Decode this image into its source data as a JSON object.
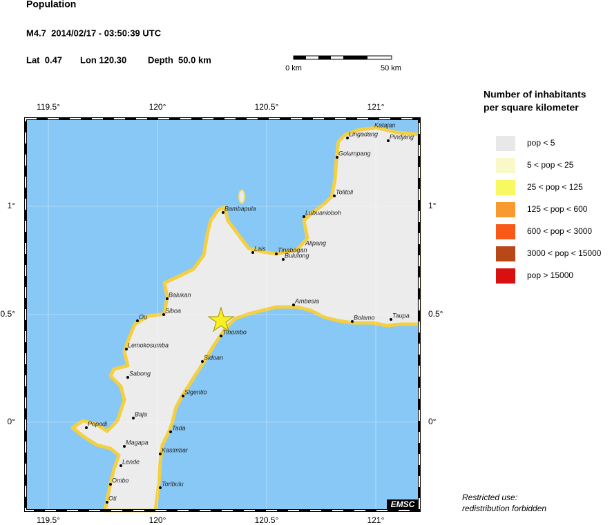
{
  "header": {
    "title": "Population",
    "event": "M4.7  2014/02/17 - 03:50:39 UTC",
    "lat": "Lat  0.47",
    "lon": "Lon 120.30",
    "depth": "Depth  50.0 km"
  },
  "scale_bar": {
    "start": "0 km",
    "end": "50 km"
  },
  "map": {
    "lon_ticks": [
      "119.5°",
      "120°",
      "120.5°",
      "121°"
    ],
    "lat_ticks": [
      "1°",
      "0.5°",
      "0°"
    ],
    "cities": [
      "Katajan",
      "Lingadang",
      "Pindjang",
      "Golumpang",
      "Tolitoli",
      "Lubuanloboh",
      "Bambapula",
      "Lais",
      "Tinabogan",
      "Alipang",
      "Bulutong",
      "Balukan",
      "Siboa",
      "Ou",
      "Ambesia",
      "Bolamo",
      "Taupa",
      "Tinombo",
      "Lemokosumba",
      "Sidoan",
      "Sabong",
      "Sigentio",
      "Baja",
      "Popodi",
      "Tada",
      "Magapa",
      "Kasimbar",
      "Lende",
      "Ombo",
      "Toribulu",
      "Oti"
    ],
    "credit": "EMSC"
  },
  "legend": {
    "title": [
      "Number of inhabitants",
      "per square kilometer"
    ],
    "items": [
      {
        "label": "pop < 5",
        "color": "#e8e8e8"
      },
      {
        "label": "5 < pop < 25",
        "color": "#f8f8c8"
      },
      {
        "label": "25 < pop < 125",
        "color": "#f8f860"
      },
      {
        "label": "125 < pop < 600",
        "color": "#f89a30"
      },
      {
        "label": "600 < pop < 3000",
        "color": "#f85818"
      },
      {
        "label": "3000 < pop < 15000",
        "color": "#b84818"
      },
      {
        "label": "pop > 15000",
        "color": "#d81010"
      }
    ]
  },
  "footer": [
    "Restricted use:",
    "redistribution forbidden"
  ]
}
